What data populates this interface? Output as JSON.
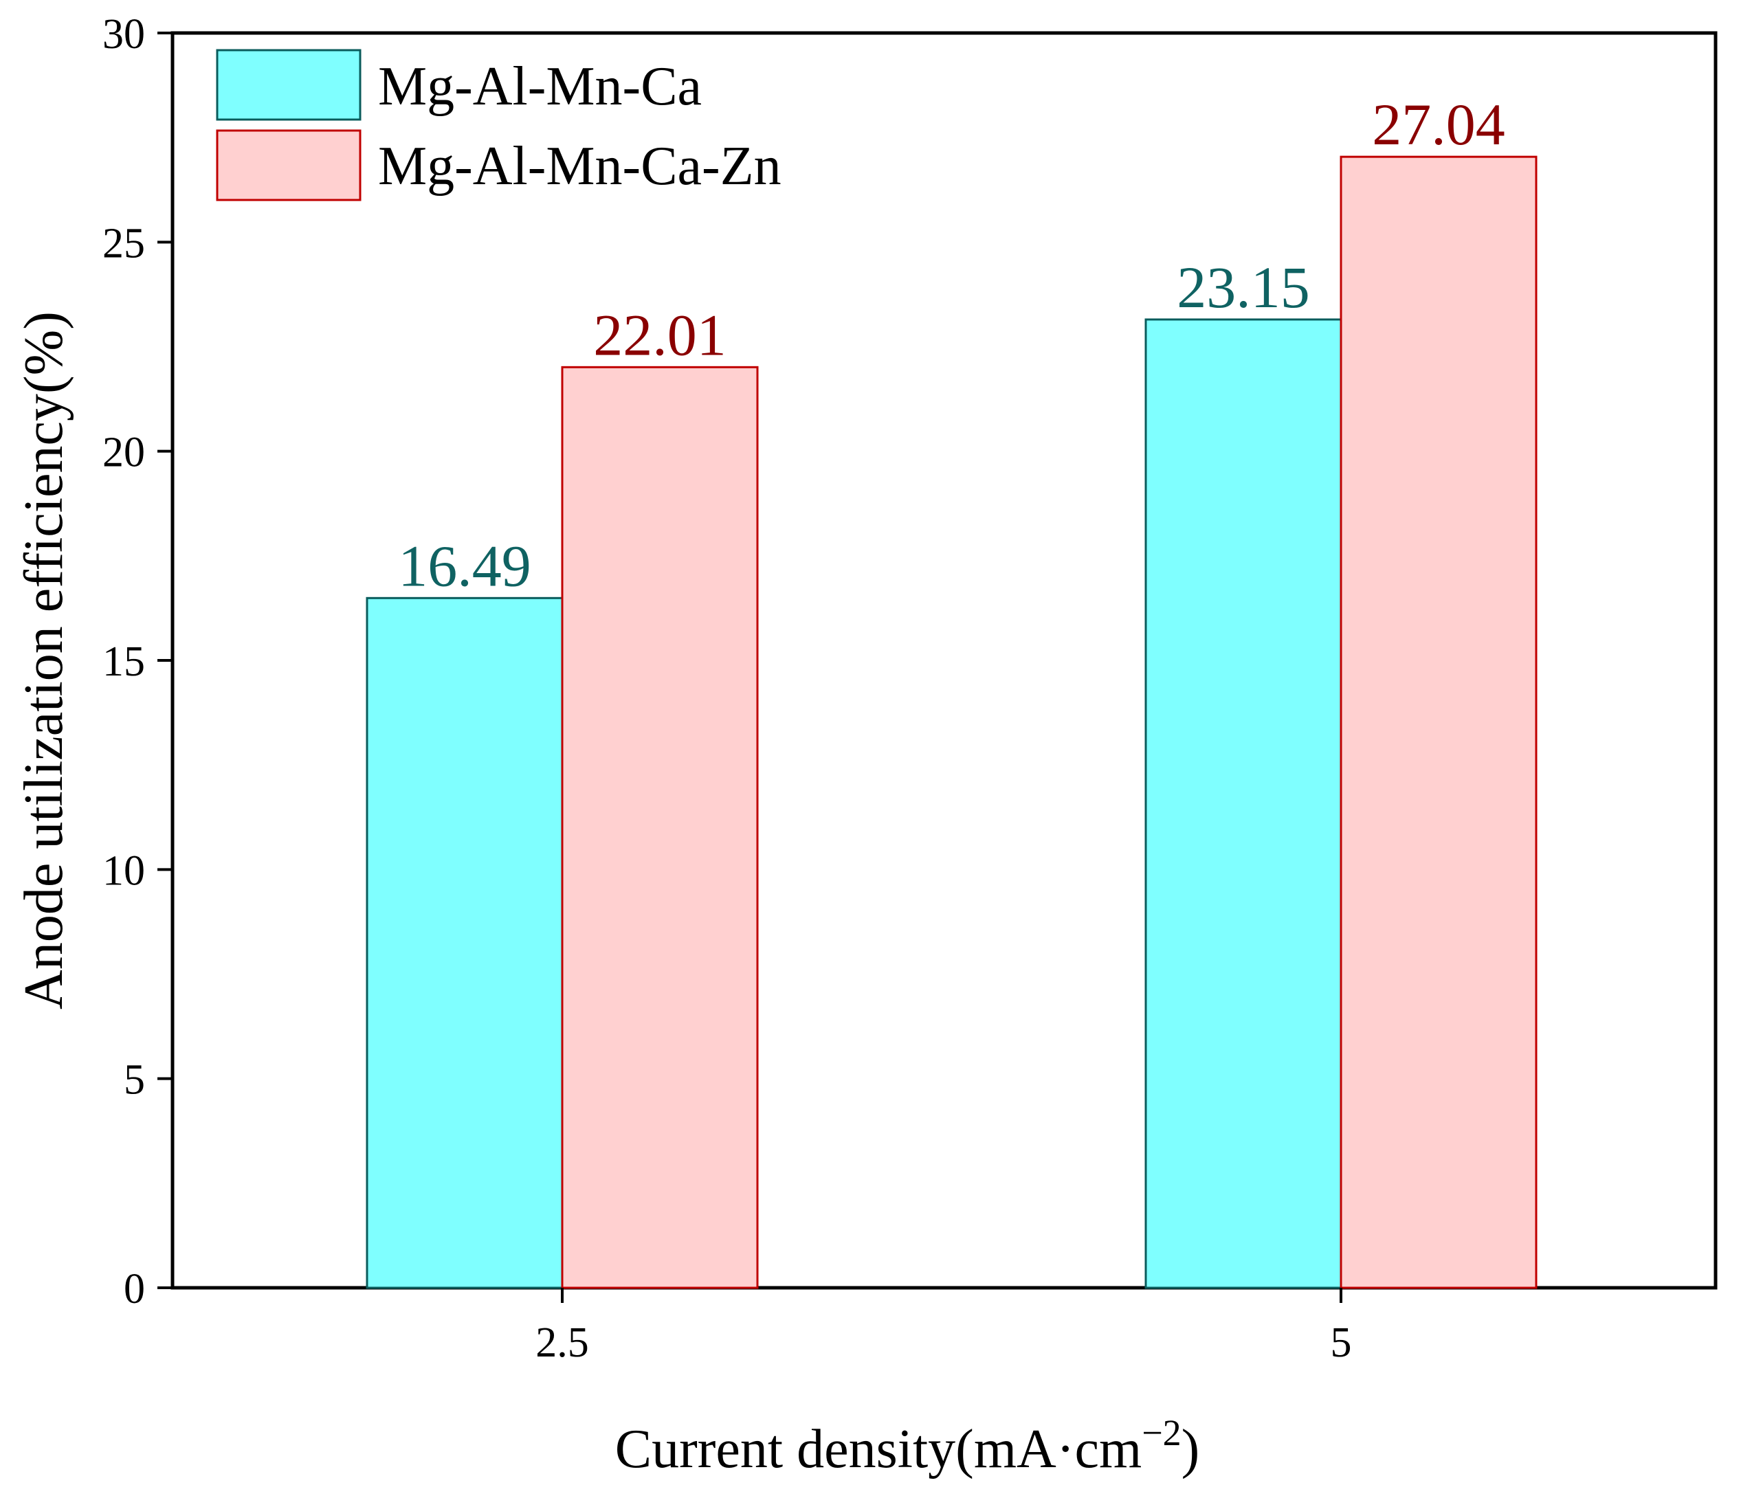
{
  "chart_data": {
    "type": "bar",
    "categories": [
      "2.5",
      "5"
    ],
    "series": [
      {
        "name": "Mg-Al-Mn-Ca",
        "values": [
          16.49,
          23.15
        ],
        "labels": [
          "16.49",
          "23.15"
        ],
        "fill": "#7fffff",
        "stroke": "#0a5c5c",
        "label_color": "#0f6262"
      },
      {
        "name": "Mg-Al-Mn-Ca-Zn",
        "values": [
          22.01,
          27.04
        ],
        "labels": [
          "22.01",
          "27.04"
        ],
        "fill": "#ffd0d0",
        "stroke": "#c00000",
        "label_color": "#8a0000"
      }
    ],
    "xlabel_main": "Current density(mA·cm",
    "xlabel_sup": "−2",
    "xlabel_close": ")",
    "ylabel": "Anode utilization efficiency(%)",
    "ylim": [
      0,
      30
    ],
    "yticks": [
      0,
      5,
      10,
      15,
      20,
      25,
      30
    ],
    "ytick_labels": [
      "0",
      "5",
      "10",
      "15",
      "20",
      "25",
      "30"
    ],
    "grid": false,
    "legend_position": "top-left"
  }
}
